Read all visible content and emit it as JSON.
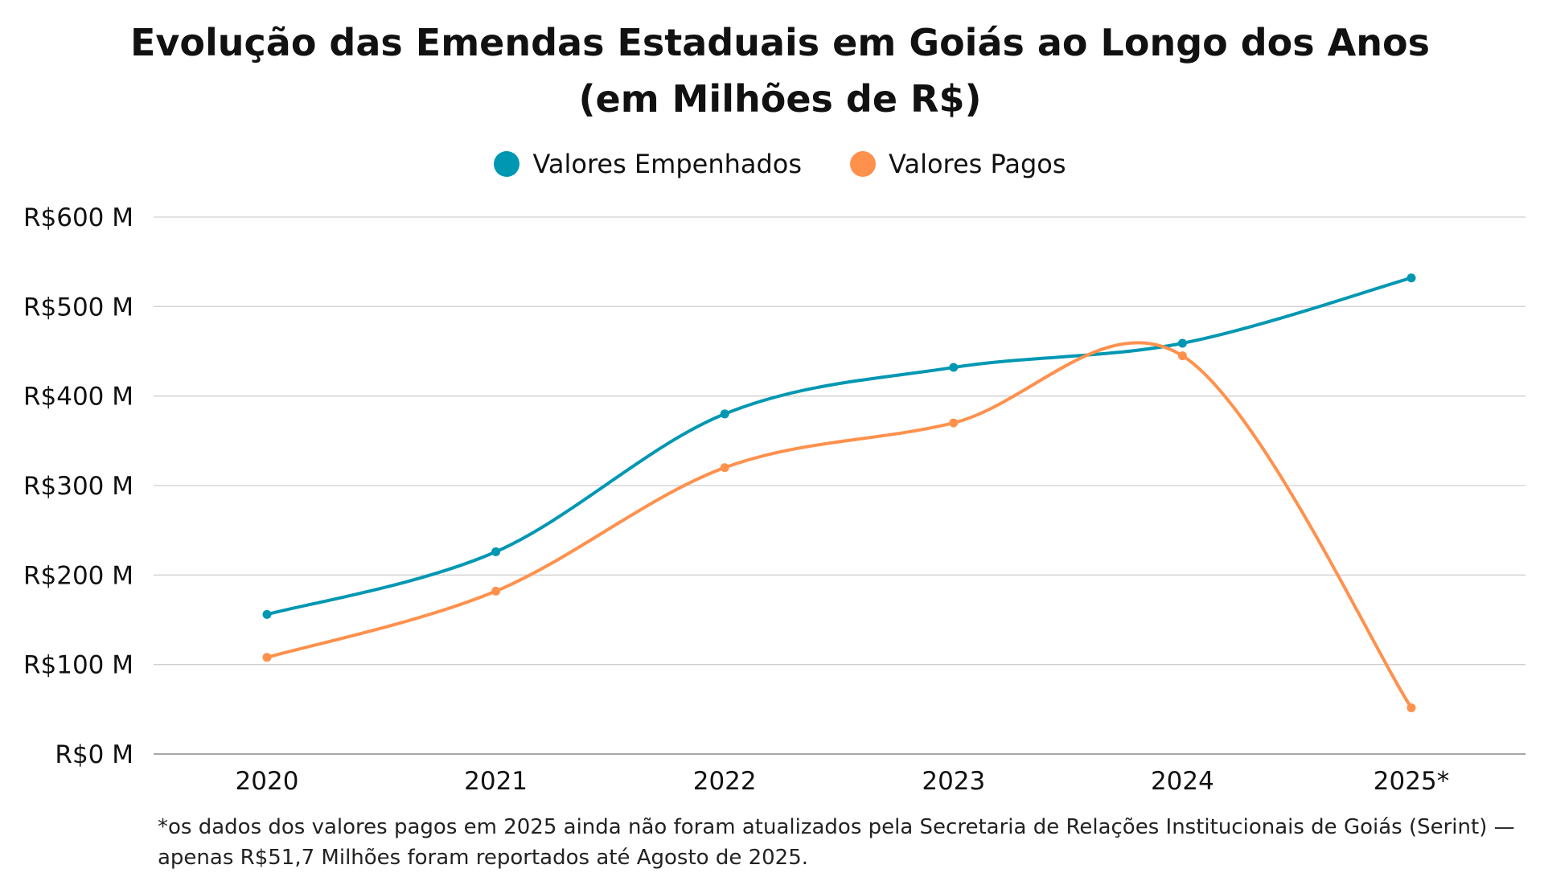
{
  "chart_data": {
    "type": "line",
    "title": "Evolução das Emendas Estaduais em Goiás ao Longo dos Anos",
    "subtitle": "(em Milhões de R$)",
    "categories": [
      "2020",
      "2021",
      "2022",
      "2023",
      "2024",
      "2025*"
    ],
    "series": [
      {
        "name": "Valores Empenhados",
        "color": "#0097b2",
        "values": [
          156,
          226,
          380,
          432,
          459,
          532
        ]
      },
      {
        "name": "Valores Pagos",
        "color": "#ff914d",
        "values": [
          108,
          182,
          320,
          370,
          445,
          51.7
        ]
      }
    ],
    "yticks": [
      0,
      100,
      200,
      300,
      400,
      500,
      600
    ],
    "ytick_labels": [
      "R$0 M",
      "R$100 M",
      "R$200 M",
      "R$300 M",
      "R$400 M",
      "R$500 M",
      "R$600 M"
    ],
    "ylim": [
      0,
      600
    ],
    "grid": true,
    "smooth": true,
    "legend_placement": "top-center",
    "footnote": "*os dados dos valores pagos em 2025 ainda não foram atualizados pela Secretaria de Relações Institucionais de Goiás (Serint) — apenas R$51,7 Milhões foram reportados até Agosto de 2025."
  }
}
